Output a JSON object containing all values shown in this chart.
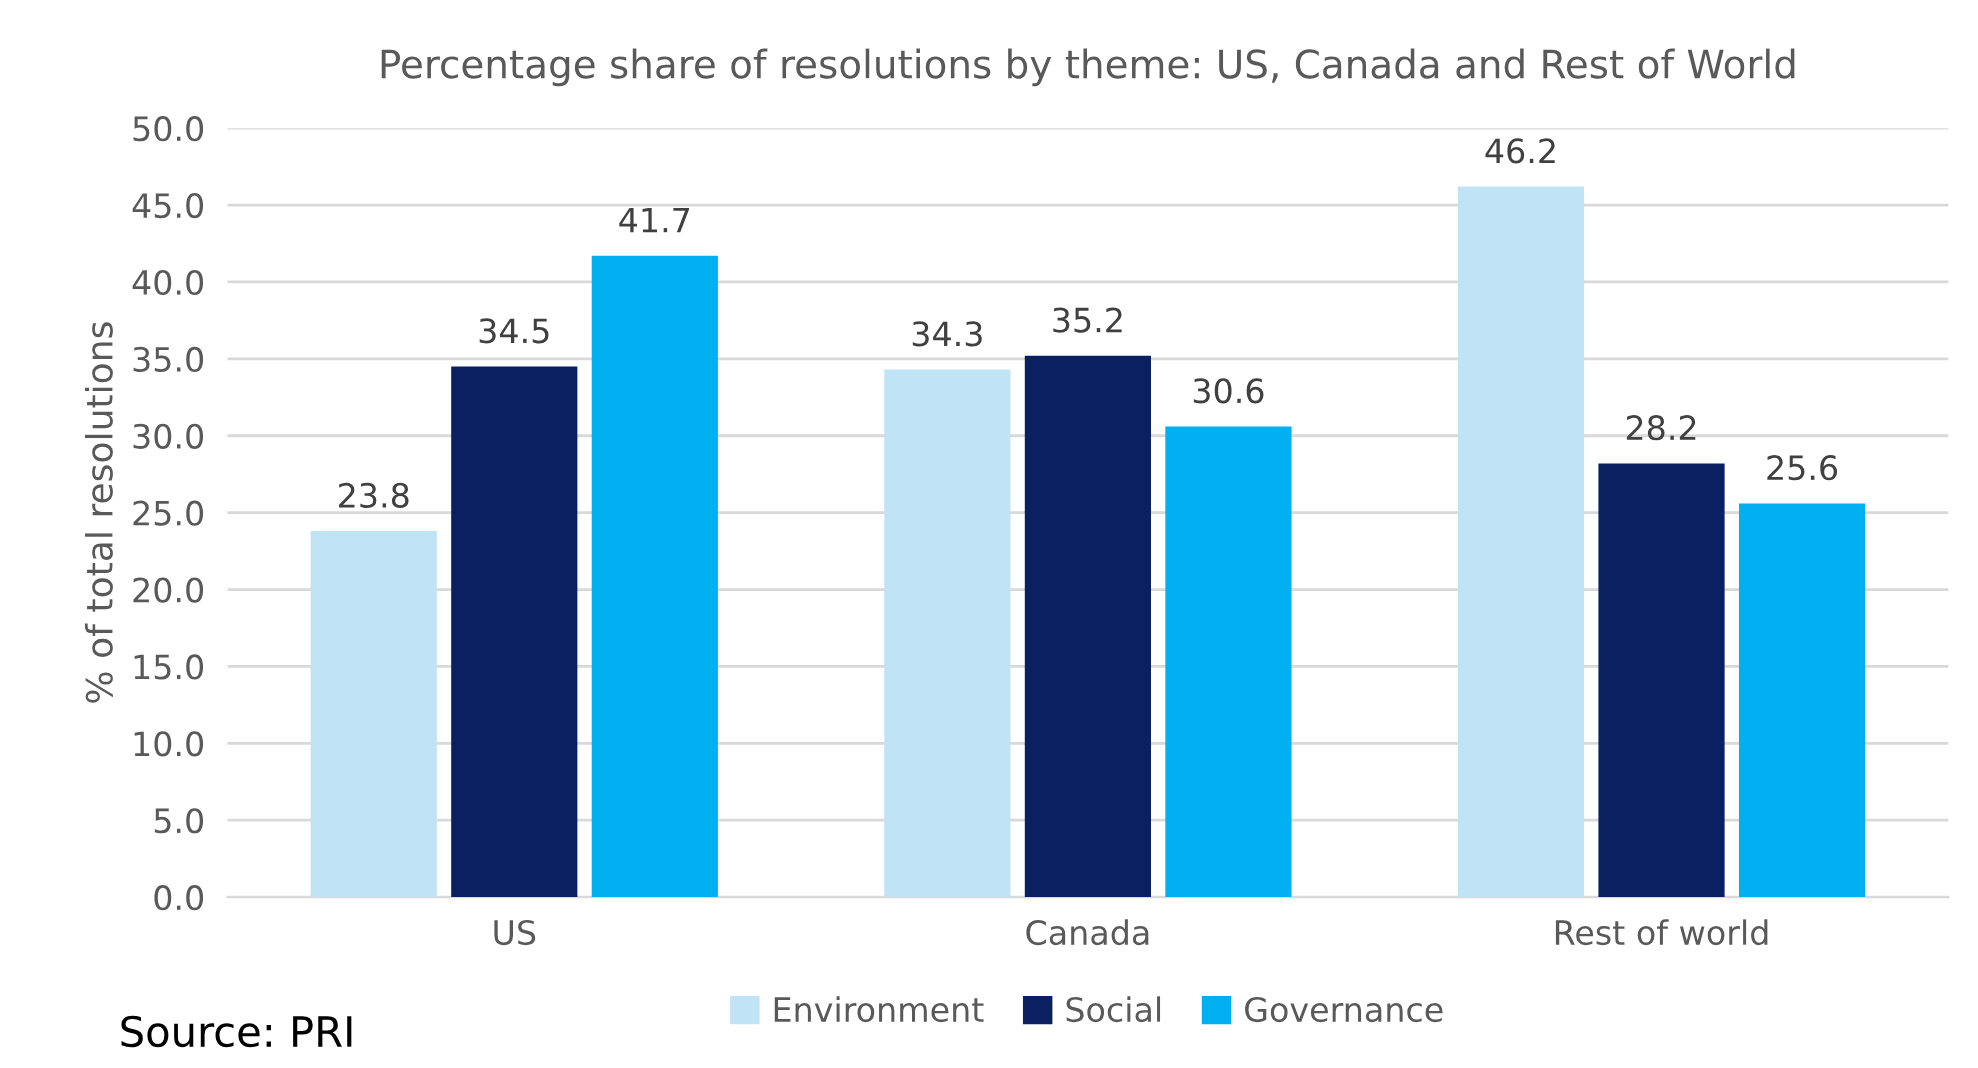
{
  "chart_data": {
    "type": "bar",
    "title": "Percentage share of resolutions by theme: US, Canada and Rest of World",
    "ylabel": "% of total resolutions",
    "categories": [
      "US",
      "Canada",
      "Rest of world"
    ],
    "series": [
      {
        "name": "Environment",
        "color": "#c0e4f5",
        "values": [
          23.8,
          34.3,
          46.2
        ]
      },
      {
        "name": "Social",
        "color": "#0a2060",
        "values": [
          34.5,
          35.2,
          28.2
        ]
      },
      {
        "name": "Governance",
        "color": "#00b0f0",
        "values": [
          41.7,
          30.6,
          25.6
        ]
      }
    ],
    "ylim": [
      0,
      50
    ],
    "yticks": [
      {
        "value": 0,
        "label": "0.0"
      },
      {
        "value": 5,
        "label": "5.0"
      },
      {
        "value": 10,
        "label": "10.0"
      },
      {
        "value": 15,
        "label": "15.0"
      },
      {
        "value": 20,
        "label": "20.0"
      },
      {
        "value": 25,
        "label": "25.0"
      },
      {
        "value": 30,
        "label": "30.0"
      },
      {
        "value": 35,
        "label": "35.0"
      },
      {
        "value": 40,
        "label": "40.0"
      },
      {
        "value": 45,
        "label": "45.0"
      },
      {
        "value": 50,
        "label": "50.0"
      }
    ],
    "grid": "y",
    "legend": "bottom",
    "data_labels": true,
    "annotations": [
      "Source: PRI"
    ]
  }
}
